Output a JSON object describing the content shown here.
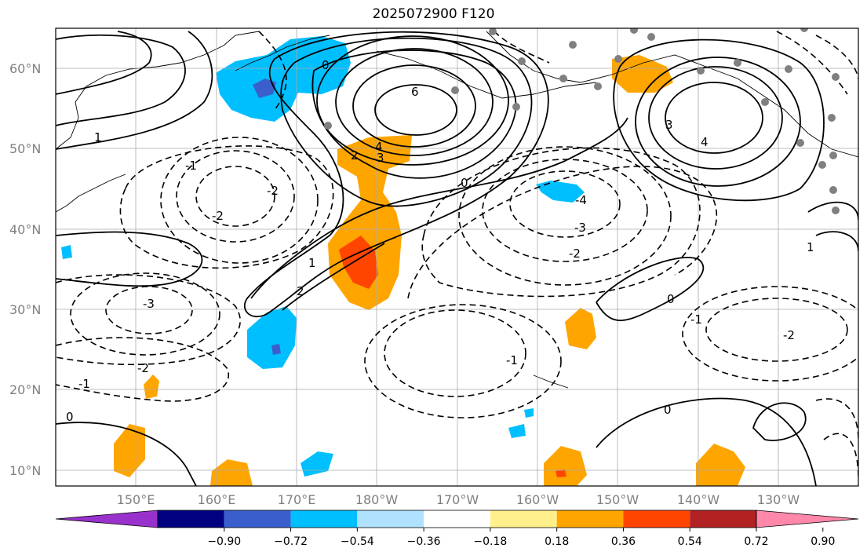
{
  "title": "2025072900 F120",
  "lat_labels": [
    "60°N",
    "50°N",
    "40°N",
    "30°N",
    "20°N",
    "10°N"
  ],
  "lon_labels": [
    "150°E",
    "160°E",
    "170°E",
    "180°W",
    "170°W",
    "160°W",
    "150°W",
    "140°W",
    "130°W"
  ],
  "colorbar": {
    "colors": [
      "#9932cc",
      "#000080",
      "#3a5fcd",
      "#00bfff",
      "#b0e2ff",
      "#ffffff",
      "#fff08b",
      "#ffa500",
      "#ff4500",
      "#b22222",
      "#ff88aa"
    ],
    "tick_labels": [
      "−0.90",
      "−0.72",
      "−0.54",
      "−0.36",
      "−0.18",
      "0.18",
      "0.36",
      "0.54",
      "0.72",
      "0.90"
    ]
  },
  "contour_labels": {
    "c6": "6",
    "c4a": "4",
    "c3a": "3",
    "c3b": "3",
    "c4b": "4",
    "c2a": "2",
    "c2b": "2",
    "c1a": "1",
    "c1b": "1",
    "c1c": "1",
    "c0a": "0",
    "c0b": "0",
    "c0c": "0",
    "c0d": "0",
    "c0e": "0",
    "cm1a": "-1",
    "cm1b": "-1",
    "cm1c": "-1",
    "cm1d": "-1",
    "cm2a": "-2",
    "cm2b": "-2",
    "cm2c": "-2",
    "cm2d": "-2",
    "cm2e": "-2",
    "cm3a": "-3",
    "cm3b": "-3",
    "cm4": "-4"
  },
  "fill_colors": {
    "orange": "#ffa500",
    "redorange": "#ff4500",
    "skyblue": "#00bfff",
    "royal": "#3a5fcd"
  }
}
